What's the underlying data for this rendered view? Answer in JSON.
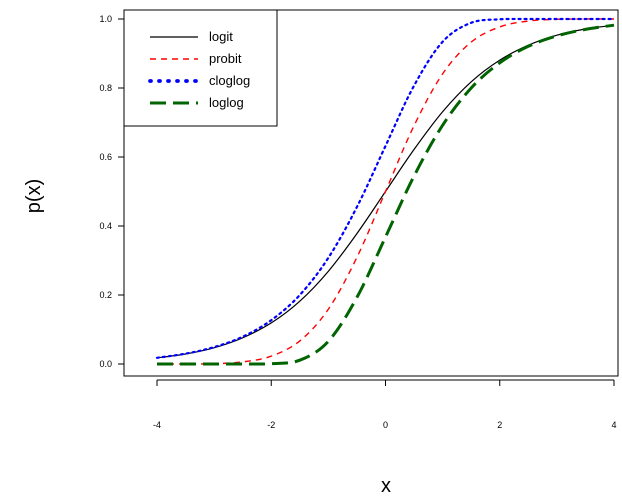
{
  "chart_data": {
    "type": "line",
    "title": "",
    "xlabel": "x",
    "ylabel": "p(x)",
    "xlim": [
      -4,
      4
    ],
    "ylim": [
      0,
      1
    ],
    "x_ticks": [
      "-4",
      "-2",
      "0",
      "2",
      "4"
    ],
    "y_ticks": [
      "0.0",
      "0.2",
      "0.4",
      "0.6",
      "0.8",
      "1.0"
    ],
    "grid": false,
    "legend_position": "top-left",
    "x": [
      -4,
      -3.5,
      -3,
      -2.5,
      -2,
      -1.5,
      -1,
      -0.5,
      0,
      0.5,
      1,
      1.5,
      2,
      2.5,
      3,
      3.5,
      4
    ],
    "series": [
      {
        "name": "logit",
        "color": "#000000",
        "style": "solid",
        "values": [
          0.018,
          0.029,
          0.047,
          0.076,
          0.119,
          0.182,
          0.269,
          0.378,
          0.5,
          0.622,
          0.731,
          0.818,
          0.881,
          0.924,
          0.953,
          0.971,
          0.982
        ]
      },
      {
        "name": "probit",
        "color": "#ff0000",
        "style": "dashed",
        "values": [
          0.0,
          0.0,
          0.001,
          0.006,
          0.023,
          0.067,
          0.159,
          0.309,
          0.5,
          0.691,
          0.841,
          0.933,
          0.977,
          0.994,
          0.999,
          1.0,
          1.0
        ]
      },
      {
        "name": "cloglog",
        "color": "#0000ff",
        "style": "dotted",
        "values": [
          0.018,
          0.03,
          0.049,
          0.079,
          0.127,
          0.2,
          0.308,
          0.455,
          0.632,
          0.807,
          0.934,
          0.989,
          0.999,
          1.0,
          1.0,
          1.0,
          1.0
        ]
      },
      {
        "name": "loglog",
        "color": "#006400",
        "style": "longdash",
        "values": [
          0.0,
          0.0,
          0.0,
          0.0,
          0.001,
          0.011,
          0.066,
          0.193,
          0.368,
          0.545,
          0.692,
          0.8,
          0.873,
          0.921,
          0.951,
          0.97,
          0.982
        ]
      }
    ]
  }
}
